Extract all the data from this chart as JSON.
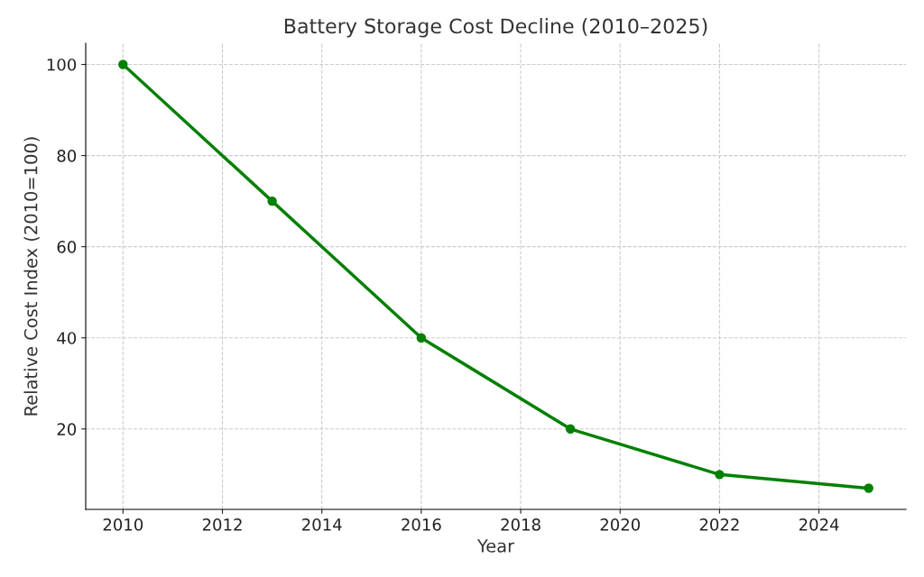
{
  "chart_data": {
    "type": "line",
    "title": "Battery Storage Cost Decline (2010–2025)",
    "xlabel": "Year",
    "ylabel": "Relative Cost Index (2010=100)",
    "x": [
      2010,
      2013,
      2016,
      2019,
      2022,
      2025
    ],
    "series": [
      {
        "color": "#008000",
        "values": [
          100,
          70,
          40,
          20,
          10,
          7
        ]
      }
    ],
    "xlim": [
      2009.25,
      2025.75
    ],
    "xticks": [
      2010,
      2012,
      2014,
      2016,
      2018,
      2020,
      2022,
      2024
    ],
    "ylim": [
      2.35,
      104.65
    ],
    "yticks": [
      20,
      40,
      60,
      80,
      100
    ],
    "grid": true,
    "marker": "circle",
    "line_style": "solid"
  }
}
